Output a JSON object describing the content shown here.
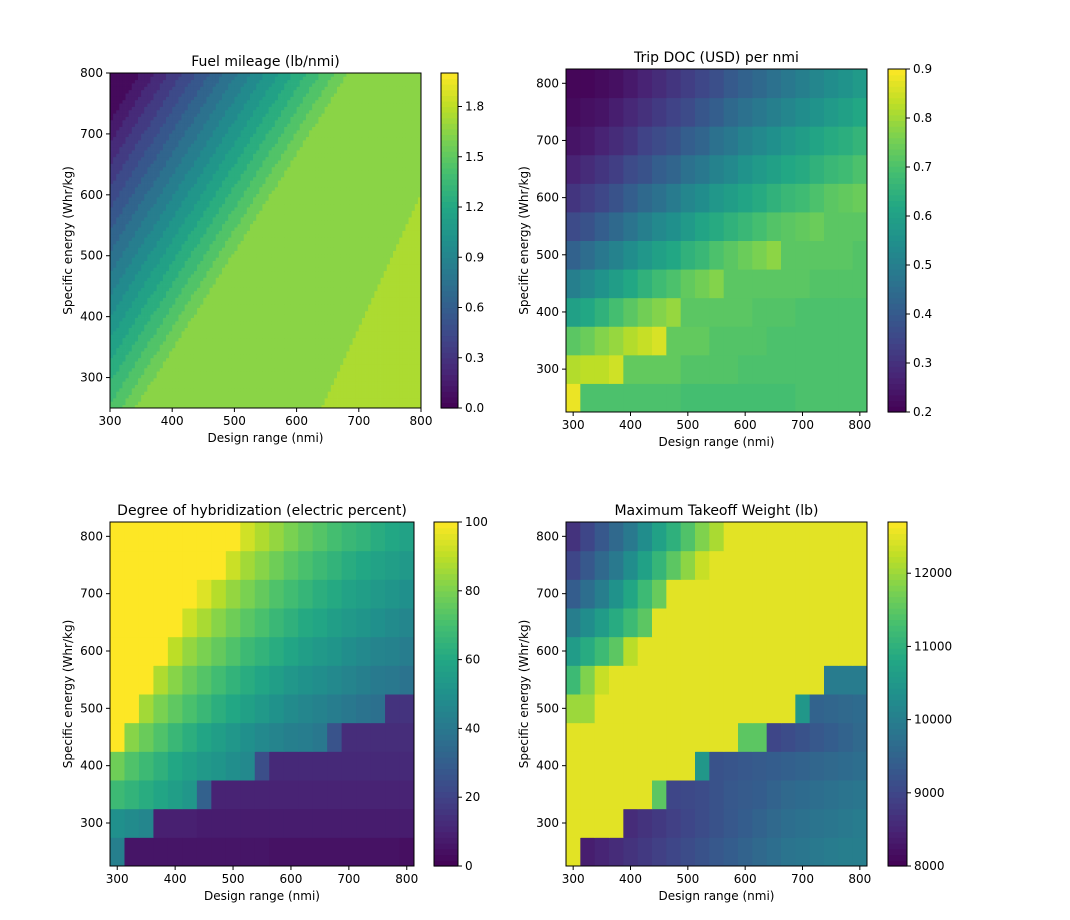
{
  "chart_data": [
    {
      "type": "heatmap",
      "style": "filled-contour",
      "title": "Fuel mileage (lb/nmi)",
      "xlabel": "Design range (nmi)",
      "ylabel": "Specific energy (Whr/kg)",
      "xlim": [
        300,
        800
      ],
      "ylim": [
        250,
        800
      ],
      "xticks": [
        "300",
        "400",
        "500",
        "600",
        "700",
        "800"
      ],
      "yticks": [
        "300",
        "400",
        "500",
        "600",
        "700",
        "800"
      ],
      "colormap": "viridis",
      "colorbar": {
        "min": 0.0,
        "max": 2.0,
        "ticks": [
          "0.0",
          "0.3",
          "0.6",
          "0.9",
          "1.2",
          "1.5",
          "1.8"
        ],
        "tick_values": [
          0.0,
          0.3,
          0.6,
          0.9,
          1.2,
          1.5,
          1.8
        ]
      },
      "model": "mileage = max(0, min(1.6, 0.0045*range - 0.0028*energy + 0.77)) with a 1.75 plateau at long range / low energy"
    },
    {
      "type": "heatmap",
      "title": "Trip DOC (USD) per nmi",
      "xlabel": "Design range (nmi)",
      "ylabel": "Specific energy (Whr/kg)",
      "x": [
        300,
        325,
        350,
        375,
        400,
        425,
        450,
        475,
        500,
        525,
        550,
        575,
        600,
        625,
        650,
        675,
        700,
        725,
        750,
        775,
        800
      ],
      "y": [
        250,
        300,
        350,
        400,
        450,
        500,
        550,
        600,
        650,
        700,
        750,
        800
      ],
      "xticks": [
        "300",
        "400",
        "500",
        "600",
        "700",
        "800"
      ],
      "yticks": [
        "300",
        "400",
        "500",
        "600",
        "700",
        "800"
      ],
      "colormap": "viridis",
      "colorbar": {
        "min": 0.2,
        "max": 0.9,
        "ticks": [
          "0.2",
          "0.3",
          "0.4",
          "0.5",
          "0.6",
          "0.7",
          "0.8",
          "0.9"
        ],
        "tick_values": [
          0.2,
          0.3,
          0.4,
          0.5,
          0.6,
          0.7,
          0.8,
          0.9
        ]
      },
      "values": [
        [
          0.88,
          0.7,
          0.7,
          0.7,
          0.7,
          0.7,
          0.7,
          0.7,
          0.69,
          0.69,
          0.69,
          0.69,
          0.69,
          0.69,
          0.69,
          0.69,
          0.7,
          0.7,
          0.7,
          0.7,
          0.7
        ],
        [
          0.82,
          0.83,
          0.83,
          0.85,
          0.73,
          0.73,
          0.73,
          0.73,
          0.71,
          0.71,
          0.71,
          0.71,
          0.7,
          0.7,
          0.7,
          0.7,
          0.7,
          0.7,
          0.7,
          0.7,
          0.7
        ],
        [
          0.72,
          0.74,
          0.77,
          0.79,
          0.82,
          0.84,
          0.86,
          0.73,
          0.73,
          0.73,
          0.71,
          0.71,
          0.71,
          0.71,
          0.7,
          0.7,
          0.7,
          0.7,
          0.7,
          0.7,
          0.7
        ],
        [
          0.6,
          0.62,
          0.65,
          0.69,
          0.72,
          0.75,
          0.77,
          0.79,
          0.72,
          0.72,
          0.72,
          0.72,
          0.72,
          0.71,
          0.71,
          0.71,
          0.7,
          0.7,
          0.7,
          0.7,
          0.7
        ],
        [
          0.5,
          0.53,
          0.56,
          0.59,
          0.62,
          0.65,
          0.68,
          0.7,
          0.73,
          0.75,
          0.77,
          0.72,
          0.72,
          0.72,
          0.72,
          0.72,
          0.72,
          0.71,
          0.71,
          0.71,
          0.71
        ],
        [
          0.42,
          0.45,
          0.48,
          0.51,
          0.54,
          0.57,
          0.6,
          0.62,
          0.65,
          0.67,
          0.7,
          0.72,
          0.74,
          0.76,
          0.78,
          0.72,
          0.72,
          0.72,
          0.72,
          0.72,
          0.71
        ],
        [
          0.36,
          0.38,
          0.41,
          0.44,
          0.47,
          0.5,
          0.53,
          0.55,
          0.58,
          0.61,
          0.63,
          0.65,
          0.67,
          0.69,
          0.71,
          0.72,
          0.73,
          0.74,
          0.72,
          0.72,
          0.72
        ],
        [
          0.31,
          0.33,
          0.35,
          0.38,
          0.41,
          0.44,
          0.46,
          0.49,
          0.52,
          0.54,
          0.57,
          0.59,
          0.61,
          0.63,
          0.65,
          0.67,
          0.68,
          0.7,
          0.72,
          0.73,
          0.74
        ],
        [
          0.27,
          0.29,
          0.31,
          0.33,
          0.36,
          0.38,
          0.41,
          0.43,
          0.46,
          0.48,
          0.51,
          0.53,
          0.56,
          0.58,
          0.6,
          0.62,
          0.63,
          0.65,
          0.67,
          0.68,
          0.7
        ],
        [
          0.24,
          0.25,
          0.27,
          0.29,
          0.31,
          0.34,
          0.36,
          0.38,
          0.41,
          0.43,
          0.46,
          0.48,
          0.51,
          0.53,
          0.55,
          0.57,
          0.59,
          0.61,
          0.63,
          0.64,
          0.66
        ],
        [
          0.22,
          0.23,
          0.24,
          0.26,
          0.28,
          0.3,
          0.32,
          0.34,
          0.36,
          0.39,
          0.41,
          0.44,
          0.46,
          0.48,
          0.5,
          0.52,
          0.54,
          0.56,
          0.58,
          0.6,
          0.62
        ],
        [
          0.21,
          0.21,
          0.22,
          0.23,
          0.25,
          0.27,
          0.29,
          0.31,
          0.33,
          0.35,
          0.37,
          0.4,
          0.42,
          0.44,
          0.46,
          0.48,
          0.5,
          0.52,
          0.54,
          0.56,
          0.58
        ]
      ]
    },
    {
      "type": "heatmap",
      "title": "Degree of hybridization (electric percent)",
      "xlabel": "Design range (nmi)",
      "ylabel": "Specific energy (Whr/kg)",
      "x": [
        300,
        325,
        350,
        375,
        400,
        425,
        450,
        475,
        500,
        525,
        550,
        575,
        600,
        625,
        650,
        675,
        700,
        725,
        750,
        775,
        800
      ],
      "y": [
        250,
        300,
        350,
        400,
        450,
        500,
        550,
        600,
        650,
        700,
        750,
        800
      ],
      "xticks": [
        "300",
        "400",
        "500",
        "600",
        "700",
        "800"
      ],
      "yticks": [
        "300",
        "400",
        "500",
        "600",
        "700",
        "800"
      ],
      "colormap": "viridis",
      "colorbar": {
        "min": 0,
        "max": 100,
        "ticks": [
          "0",
          "20",
          "40",
          "60",
          "80",
          "100"
        ],
        "tick_values": [
          0,
          20,
          40,
          60,
          80,
          100
        ]
      },
      "values": [
        [
          43,
          6,
          6,
          6,
          6,
          6,
          6,
          6,
          6,
          6,
          6,
          5,
          5,
          5,
          5,
          5,
          5,
          5,
          5,
          5,
          4
        ],
        [
          50,
          48,
          46,
          9,
          9,
          9,
          8,
          8,
          8,
          8,
          8,
          8,
          8,
          8,
          8,
          8,
          8,
          8,
          8,
          8,
          8
        ],
        [
          68,
          65,
          62,
          59,
          56,
          53,
          31,
          10,
          10,
          10,
          10,
          10,
          10,
          10,
          10,
          10,
          10,
          10,
          10,
          10,
          10
        ],
        [
          78,
          72,
          68,
          64,
          60,
          57,
          54,
          52,
          49,
          47,
          24,
          12,
          12,
          12,
          12,
          12,
          12,
          12,
          12,
          12,
          12
        ],
        [
          100,
          82,
          77,
          72,
          67,
          63,
          59,
          56,
          53,
          50,
          47,
          45,
          43,
          42,
          40,
          26,
          13,
          13,
          13,
          13,
          13
        ],
        [
          100,
          100,
          86,
          80,
          75,
          71,
          67,
          63,
          60,
          57,
          54,
          51,
          48,
          46,
          44,
          42,
          40,
          38,
          37,
          15,
          15
        ],
        [
          100,
          100,
          100,
          88,
          82,
          77,
          73,
          69,
          65,
          62,
          59,
          56,
          53,
          51,
          49,
          47,
          45,
          43,
          41,
          40,
          38
        ],
        [
          100,
          100,
          100,
          100,
          90,
          84,
          80,
          76,
          72,
          68,
          65,
          62,
          59,
          56,
          54,
          52,
          49,
          47,
          45,
          44,
          42
        ],
        [
          100,
          100,
          100,
          100,
          100,
          92,
          87,
          82,
          78,
          74,
          71,
          67,
          64,
          61,
          59,
          56,
          54,
          52,
          50,
          48,
          46
        ],
        [
          100,
          100,
          100,
          100,
          100,
          100,
          95,
          89,
          84,
          80,
          76,
          72,
          69,
          66,
          63,
          61,
          58,
          56,
          54,
          52,
          50
        ],
        [
          100,
          100,
          100,
          100,
          100,
          100,
          100,
          100,
          92,
          86,
          82,
          78,
          74,
          71,
          68,
          65,
          62,
          60,
          58,
          56,
          54
        ],
        [
          100,
          100,
          100,
          100,
          100,
          100,
          100,
          100,
          100,
          93,
          88,
          84,
          80,
          76,
          73,
          70,
          67,
          65,
          62,
          60,
          58
        ]
      ]
    },
    {
      "type": "heatmap",
      "title": "Maximum Takeoff Weight (lb)",
      "xlabel": "Design range (nmi)",
      "ylabel": "Specific energy (Whr/kg)",
      "x": [
        300,
        325,
        350,
        375,
        400,
        425,
        450,
        475,
        500,
        525,
        550,
        575,
        600,
        625,
        650,
        675,
        700,
        725,
        750,
        775,
        800
      ],
      "y": [
        250,
        300,
        350,
        400,
        450,
        500,
        550,
        600,
        650,
        700,
        750,
        800
      ],
      "xticks": [
        "300",
        "400",
        "500",
        "600",
        "700",
        "800"
      ],
      "yticks": [
        "300",
        "400",
        "500",
        "600",
        "700",
        "800"
      ],
      "colormap": "viridis",
      "colorbar": {
        "min": 8000,
        "max": 12700,
        "ticks": [
          "8000",
          "9000",
          "10000",
          "11000",
          "12000"
        ],
        "tick_values": [
          8000,
          9000,
          10000,
          11000,
          12000
        ]
      },
      "values": [
        [
          12500,
          8400,
          8500,
          8600,
          8700,
          8800,
          8900,
          9000,
          9100,
          9200,
          9300,
          9400,
          9500,
          9600,
          9700,
          9800,
          9850,
          9900,
          9950,
          10000,
          10000
        ],
        [
          12500,
          12500,
          12500,
          12500,
          8600,
          8700,
          8800,
          8900,
          9000,
          9100,
          9200,
          9300,
          9400,
          9500,
          9600,
          9700,
          9750,
          9800,
          9850,
          9900,
          9950
        ],
        [
          12500,
          12500,
          12500,
          12500,
          12500,
          12500,
          11500,
          9000,
          9050,
          9100,
          9200,
          9300,
          9350,
          9400,
          9500,
          9600,
          9650,
          9700,
          9750,
          9800,
          9850
        ],
        [
          12500,
          12500,
          12500,
          12500,
          12500,
          12500,
          12500,
          12500,
          12500,
          10500,
          9200,
          9250,
          9300,
          9350,
          9400,
          9450,
          9500,
          9550,
          9600,
          9650,
          9700
        ],
        [
          12500,
          12500,
          12500,
          12500,
          12500,
          12500,
          12500,
          12500,
          12500,
          12500,
          12500,
          12500,
          11500,
          11500,
          9000,
          9100,
          9200,
          9300,
          9400,
          9500,
          9600
        ],
        [
          12000,
          12000,
          12500,
          12500,
          12500,
          12500,
          12500,
          12500,
          12500,
          12500,
          12500,
          12500,
          12500,
          12500,
          12500,
          12500,
          10500,
          9500,
          9550,
          9600,
          9650
        ],
        [
          11200,
          11800,
          12300,
          12500,
          12500,
          12500,
          12500,
          12500,
          12500,
          12500,
          12500,
          12500,
          12500,
          12500,
          12500,
          12500,
          12500,
          12500,
          9950,
          9950,
          9950
        ],
        [
          10600,
          10900,
          11200,
          11500,
          12200,
          12500,
          12500,
          12500,
          12500,
          12500,
          12500,
          12500,
          12500,
          12500,
          12500,
          12500,
          12500,
          12500,
          12500,
          12500,
          12500
        ],
        [
          10000,
          10300,
          10600,
          10900,
          11200,
          11500,
          12500,
          12500,
          12500,
          12500,
          12500,
          12500,
          12500,
          12500,
          12500,
          12500,
          12500,
          12500,
          12500,
          12500,
          12500
        ],
        [
          9400,
          9700,
          10000,
          10400,
          10800,
          11200,
          11600,
          12500,
          12500,
          12500,
          12500,
          12500,
          12500,
          12500,
          12500,
          12500,
          12500,
          12500,
          12500,
          12500,
          12500
        ],
        [
          9000,
          9300,
          9600,
          9900,
          10300,
          10700,
          11100,
          11500,
          11900,
          12300,
          12500,
          12500,
          12500,
          12500,
          12500,
          12500,
          12500,
          12500,
          12500,
          12500,
          12500
        ],
        [
          8700,
          9000,
          9300,
          9600,
          9900,
          10300,
          10700,
          11000,
          11400,
          11800,
          12100,
          12500,
          12500,
          12500,
          12500,
          12500,
          12500,
          12500,
          12500,
          12500,
          12500
        ]
      ]
    }
  ]
}
